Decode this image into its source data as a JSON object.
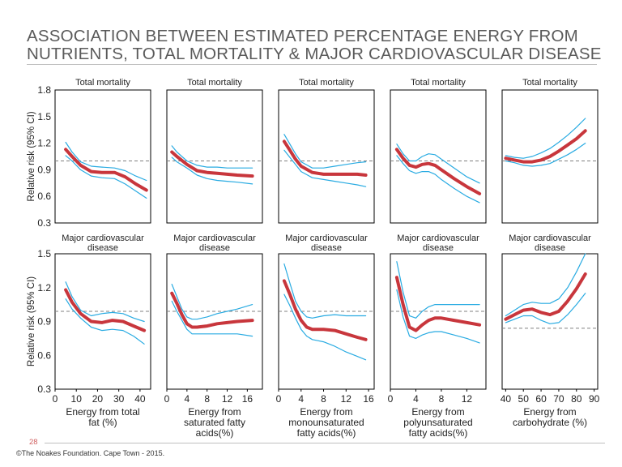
{
  "title_line1": "ASSOCIATION BETWEEN ESTIMATED PERCENTAGE ENERGY FROM",
  "title_line2": "NUTRIENTS, TOTAL MORTALITY & MAJOR CARDIOVASCULAR DISEASE",
  "page_number": "28",
  "footer": "©The Noakes Foundation. Cape Town - 2015.",
  "colors": {
    "estimate": "#c8363c",
    "ci": "#29abe2",
    "reference": "#808080",
    "frame": "#000000"
  },
  "chart_data": [
    {
      "type": "line",
      "row": 1,
      "title": "Total mortality",
      "ylabel": "Relative risk (95% CI)",
      "ylim": [
        0.3,
        1.8
      ],
      "yticks": [
        "0.3",
        "0.6",
        "0.9",
        "1.2",
        "1.5",
        "1.8"
      ],
      "xlim": [
        0,
        45
      ],
      "reference": 1.0,
      "series": [
        {
          "role": "estimate",
          "x": [
            5,
            8,
            12,
            17,
            22,
            28,
            33,
            38,
            43
          ],
          "y": [
            1.13,
            1.05,
            0.95,
            0.88,
            0.87,
            0.87,
            0.82,
            0.74,
            0.67
          ]
        },
        {
          "role": "upper",
          "x": [
            5,
            8,
            12,
            17,
            22,
            28,
            33,
            38,
            43
          ],
          "y": [
            1.21,
            1.1,
            0.99,
            0.94,
            0.93,
            0.92,
            0.89,
            0.83,
            0.78
          ]
        },
        {
          "role": "lower",
          "x": [
            5,
            8,
            12,
            17,
            22,
            28,
            33,
            38,
            43
          ],
          "y": [
            1.06,
            1.0,
            0.9,
            0.83,
            0.81,
            0.8,
            0.74,
            0.66,
            0.58
          ]
        }
      ]
    },
    {
      "type": "line",
      "row": 1,
      "title": "Total mortality",
      "xlim": [
        0,
        19
      ],
      "reference": 1.0,
      "series": [
        {
          "role": "estimate",
          "x": [
            1,
            2,
            4,
            6,
            8,
            10,
            12,
            14,
            17
          ],
          "y": [
            1.1,
            1.05,
            0.96,
            0.89,
            0.87,
            0.86,
            0.85,
            0.84,
            0.83
          ]
        },
        {
          "role": "upper",
          "x": [
            1,
            2,
            4,
            6,
            8,
            10,
            12,
            14,
            17
          ],
          "y": [
            1.17,
            1.1,
            1.0,
            0.95,
            0.93,
            0.93,
            0.92,
            0.92,
            0.92
          ]
        },
        {
          "role": "lower",
          "x": [
            1,
            2,
            4,
            6,
            8,
            10,
            12,
            14,
            17
          ],
          "y": [
            1.04,
            0.99,
            0.92,
            0.84,
            0.8,
            0.78,
            0.77,
            0.76,
            0.74
          ]
        }
      ]
    },
    {
      "type": "line",
      "row": 1,
      "title": "Total mortality",
      "xlim": [
        0,
        17
      ],
      "reference": 1.0,
      "series": [
        {
          "role": "estimate",
          "x": [
            1,
            2,
            3,
            4,
            6,
            8,
            10,
            12,
            14,
            15.5
          ],
          "y": [
            1.22,
            1.12,
            1.02,
            0.94,
            0.87,
            0.85,
            0.85,
            0.85,
            0.85,
            0.84
          ]
        },
        {
          "role": "upper",
          "x": [
            1,
            2,
            3,
            4,
            6,
            8,
            10,
            12,
            14,
            15.5
          ],
          "y": [
            1.3,
            1.19,
            1.08,
            0.99,
            0.92,
            0.92,
            0.94,
            0.96,
            0.98,
            0.99
          ]
        },
        {
          "role": "lower",
          "x": [
            1,
            2,
            3,
            4,
            6,
            8,
            10,
            12,
            14,
            15.5
          ],
          "y": [
            1.12,
            1.04,
            0.96,
            0.88,
            0.81,
            0.79,
            0.77,
            0.75,
            0.73,
            0.71
          ]
        }
      ]
    },
    {
      "type": "line",
      "row": 1,
      "title": "Total mortality",
      "xlim": [
        0,
        15
      ],
      "reference": 1.0,
      "series": [
        {
          "role": "estimate",
          "x": [
            1,
            2,
            3,
            4,
            5,
            6,
            7,
            8,
            10,
            12,
            14
          ],
          "y": [
            1.13,
            1.03,
            0.95,
            0.93,
            0.96,
            0.97,
            0.95,
            0.9,
            0.8,
            0.71,
            0.63
          ]
        },
        {
          "role": "upper",
          "x": [
            1,
            2,
            3,
            4,
            5,
            6,
            7,
            8,
            10,
            12,
            14
          ],
          "y": [
            1.19,
            1.08,
            1.0,
            1.0,
            1.05,
            1.08,
            1.07,
            1.02,
            0.92,
            0.82,
            0.75
          ]
        },
        {
          "role": "lower",
          "x": [
            1,
            2,
            3,
            4,
            5,
            6,
            7,
            8,
            10,
            12,
            14
          ],
          "y": [
            1.06,
            0.97,
            0.89,
            0.86,
            0.88,
            0.88,
            0.85,
            0.79,
            0.69,
            0.6,
            0.53
          ]
        }
      ]
    },
    {
      "type": "line",
      "row": 1,
      "title": "Total mortality",
      "xlim": [
        38,
        92
      ],
      "reference": 1.0,
      "series": [
        {
          "role": "estimate",
          "x": [
            40,
            45,
            50,
            55,
            60,
            65,
            70,
            75,
            80,
            85
          ],
          "y": [
            1.03,
            1.01,
            0.99,
            0.99,
            1.01,
            1.05,
            1.11,
            1.18,
            1.25,
            1.34
          ]
        },
        {
          "role": "upper",
          "x": [
            40,
            45,
            50,
            55,
            60,
            65,
            70,
            75,
            80,
            85
          ],
          "y": [
            1.06,
            1.04,
            1.03,
            1.05,
            1.09,
            1.14,
            1.21,
            1.29,
            1.38,
            1.48
          ]
        },
        {
          "role": "lower",
          "x": [
            40,
            45,
            50,
            55,
            60,
            65,
            70,
            75,
            80,
            85
          ],
          "y": [
            1.0,
            0.98,
            0.95,
            0.94,
            0.95,
            0.97,
            1.02,
            1.07,
            1.13,
            1.2
          ]
        }
      ]
    },
    {
      "type": "line",
      "row": 2,
      "title": "Major cardiovascular disease",
      "ylabel": "Relative risk (95% CI)",
      "ylim": [
        0.3,
        1.5
      ],
      "yticks": [
        "0.3",
        "0.6",
        "0.9",
        "1.2",
        "1.5"
      ],
      "xlim": [
        0,
        45
      ],
      "xticks": [
        "0",
        "10",
        "20",
        "30",
        "40"
      ],
      "xlabel": "Energy from total fat (%)",
      "reference": 0.99,
      "series": [
        {
          "role": "estimate",
          "x": [
            5,
            8,
            12,
            17,
            22,
            27,
            32,
            37,
            42
          ],
          "y": [
            1.18,
            1.07,
            0.97,
            0.9,
            0.89,
            0.91,
            0.9,
            0.86,
            0.82
          ]
        },
        {
          "role": "upper",
          "x": [
            5,
            8,
            12,
            17,
            22,
            27,
            32,
            37,
            42
          ],
          "y": [
            1.25,
            1.12,
            1.0,
            0.95,
            0.97,
            0.98,
            0.97,
            0.93,
            0.9
          ]
        },
        {
          "role": "lower",
          "x": [
            5,
            8,
            12,
            17,
            22,
            27,
            32,
            37,
            42
          ],
          "y": [
            1.1,
            1.01,
            0.93,
            0.85,
            0.82,
            0.83,
            0.82,
            0.77,
            0.7
          ]
        }
      ]
    },
    {
      "type": "line",
      "row": 2,
      "title": "Major cardiovascular disease",
      "xlim": [
        0,
        19
      ],
      "xticks": [
        "0",
        "4",
        "8",
        "12",
        "16"
      ],
      "xlabel": "Energy from saturated fatty acids(%)",
      "reference": 0.99,
      "series": [
        {
          "role": "estimate",
          "x": [
            1,
            2,
            3,
            4,
            5,
            6,
            8,
            10,
            12,
            14,
            17
          ],
          "y": [
            1.15,
            1.06,
            0.96,
            0.88,
            0.85,
            0.85,
            0.86,
            0.88,
            0.89,
            0.9,
            0.91
          ]
        },
        {
          "role": "upper",
          "x": [
            1,
            2,
            3,
            4,
            5,
            6,
            8,
            10,
            12,
            14,
            17
          ],
          "y": [
            1.23,
            1.12,
            1.01,
            0.94,
            0.92,
            0.92,
            0.94,
            0.97,
            0.99,
            1.01,
            1.05
          ]
        },
        {
          "role": "lower",
          "x": [
            1,
            2,
            3,
            4,
            5,
            6,
            8,
            10,
            12,
            14,
            17
          ],
          "y": [
            1.08,
            0.99,
            0.91,
            0.83,
            0.79,
            0.79,
            0.79,
            0.79,
            0.79,
            0.79,
            0.77
          ]
        }
      ]
    },
    {
      "type": "line",
      "row": 2,
      "title": "Major cardiovascular disease",
      "xlim": [
        0,
        17
      ],
      "xticks": [
        "0",
        "4",
        "8",
        "12",
        "16"
      ],
      "xlabel": "Energy from monounsaturated fatty acids(%)",
      "reference": 0.99,
      "series": [
        {
          "role": "estimate",
          "x": [
            1,
            2,
            3,
            4,
            5,
            6,
            7,
            8,
            10,
            12,
            14,
            15.5
          ],
          "y": [
            1.26,
            1.14,
            1.01,
            0.91,
            0.85,
            0.83,
            0.83,
            0.83,
            0.82,
            0.79,
            0.76,
            0.74
          ]
        },
        {
          "role": "upper",
          "x": [
            1,
            2,
            3,
            4,
            5,
            6,
            7,
            8,
            10,
            12,
            14,
            15.5
          ],
          "y": [
            1.41,
            1.24,
            1.08,
            0.99,
            0.94,
            0.93,
            0.94,
            0.95,
            0.96,
            0.95,
            0.95,
            0.95
          ]
        },
        {
          "role": "lower",
          "x": [
            1,
            2,
            3,
            4,
            5,
            6,
            7,
            8,
            10,
            12,
            14,
            15.5
          ],
          "y": [
            1.14,
            1.04,
            0.93,
            0.83,
            0.77,
            0.74,
            0.73,
            0.72,
            0.68,
            0.63,
            0.59,
            0.56
          ]
        }
      ]
    },
    {
      "type": "line",
      "row": 2,
      "title": "Major cardiovascular disease",
      "xlim": [
        0,
        15
      ],
      "xticks": [
        "0",
        "4",
        "8",
        "12"
      ],
      "xlabel": "Energy from polyunsaturated fatty acids(%)",
      "reference": 0.99,
      "series": [
        {
          "role": "estimate",
          "x": [
            1,
            2,
            3,
            4,
            5,
            6,
            7,
            8,
            10,
            12,
            14
          ],
          "y": [
            1.29,
            1.05,
            0.85,
            0.82,
            0.87,
            0.91,
            0.93,
            0.93,
            0.91,
            0.89,
            0.87
          ]
        },
        {
          "role": "upper",
          "x": [
            1,
            2,
            3,
            4,
            5,
            6,
            7,
            8,
            10,
            12,
            14
          ],
          "y": [
            1.43,
            1.16,
            0.95,
            0.93,
            0.99,
            1.03,
            1.05,
            1.05,
            1.05,
            1.05,
            1.05
          ]
        },
        {
          "role": "lower",
          "x": [
            1,
            2,
            3,
            4,
            5,
            6,
            7,
            8,
            10,
            12,
            14
          ],
          "y": [
            1.18,
            0.94,
            0.77,
            0.75,
            0.78,
            0.8,
            0.81,
            0.81,
            0.78,
            0.75,
            0.71
          ]
        }
      ]
    },
    {
      "type": "line",
      "row": 2,
      "title": "Major cardiovascular disease",
      "xlim": [
        38,
        92
      ],
      "xticks": [
        "40",
        "50",
        "60",
        "70",
        "80",
        "90"
      ],
      "xlabel": "Energy from carbohydrate (%)",
      "reference": 0.84,
      "series": [
        {
          "role": "estimate",
          "x": [
            40,
            45,
            50,
            55,
            60,
            65,
            70,
            75,
            80,
            85
          ],
          "y": [
            0.92,
            0.96,
            1.0,
            1.01,
            0.98,
            0.96,
            0.99,
            1.08,
            1.19,
            1.32
          ]
        },
        {
          "role": "upper",
          "x": [
            40,
            45,
            50,
            55,
            60,
            65,
            70,
            75,
            80,
            85
          ],
          "y": [
            0.95,
            1.0,
            1.05,
            1.07,
            1.06,
            1.06,
            1.1,
            1.2,
            1.34,
            1.5
          ]
        },
        {
          "role": "lower",
          "x": [
            40,
            45,
            50,
            55,
            60,
            65,
            70,
            75,
            80,
            85
          ],
          "y": [
            0.89,
            0.92,
            0.95,
            0.95,
            0.91,
            0.88,
            0.89,
            0.96,
            1.05,
            1.15
          ]
        }
      ]
    }
  ]
}
